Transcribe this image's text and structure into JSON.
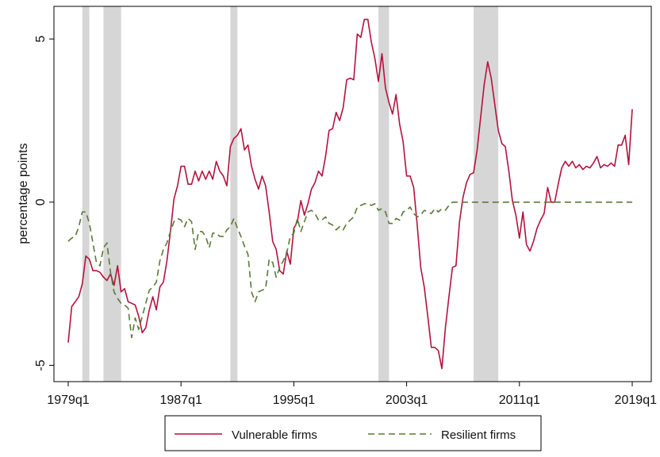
{
  "chart_data": {
    "type": "line",
    "xlabel": "",
    "ylabel": "percentage points",
    "xlim": [
      1979.0,
      2019.0
    ],
    "ylim": [
      -5.5,
      6.0
    ],
    "x_ticks": [
      {
        "value": 1979.0,
        "label": "1979q1"
      },
      {
        "value": 1987.0,
        "label": "1987q1"
      },
      {
        "value": 1995.0,
        "label": "1995q1"
      },
      {
        "value": 2003.0,
        "label": "2003q1"
      },
      {
        "value": 2011.0,
        "label": "2011q1"
      },
      {
        "value": 2019.0,
        "label": "2019q1"
      }
    ],
    "y_ticks": [
      {
        "value": -5,
        "label": "-5"
      },
      {
        "value": 0,
        "label": "0"
      },
      {
        "value": 5,
        "label": "5"
      }
    ],
    "grid": false,
    "legend_position": "bottom",
    "recession_shading": [
      [
        1980.0,
        1980.5
      ],
      [
        1981.5,
        1982.75
      ],
      [
        1990.5,
        1991.0
      ],
      [
        2001.0,
        2001.75
      ],
      [
        2007.75,
        2009.5
      ]
    ],
    "series": [
      {
        "name": "Vulnerable firms",
        "color": "#b5123d",
        "style": "solid",
        "points": [
          [
            1979.0,
            -4.3
          ],
          [
            1979.25,
            -3.2
          ],
          [
            1979.5,
            -3.05
          ],
          [
            1979.75,
            -2.9
          ],
          [
            1980.0,
            -2.5
          ],
          [
            1980.25,
            -1.65
          ],
          [
            1980.5,
            -1.75
          ],
          [
            1980.75,
            -2.1
          ],
          [
            1981.0,
            -2.1
          ],
          [
            1981.25,
            -2.15
          ],
          [
            1981.5,
            -2.3
          ],
          [
            1981.75,
            -2.4
          ],
          [
            1982.0,
            -2.2
          ],
          [
            1982.25,
            -2.55
          ],
          [
            1982.5,
            -1.95
          ],
          [
            1982.75,
            -2.75
          ],
          [
            1983.0,
            -2.65
          ],
          [
            1983.25,
            -3.05
          ],
          [
            1983.5,
            -3.1
          ],
          [
            1983.75,
            -3.15
          ],
          [
            1984.0,
            -3.5
          ],
          [
            1984.25,
            -4.0
          ],
          [
            1984.5,
            -3.85
          ],
          [
            1984.75,
            -3.3
          ],
          [
            1985.0,
            -2.9
          ],
          [
            1985.25,
            -3.3
          ],
          [
            1985.5,
            -2.6
          ],
          [
            1985.75,
            -2.45
          ],
          [
            1986.0,
            -1.8
          ],
          [
            1986.25,
            -0.9
          ],
          [
            1986.5,
            0.1
          ],
          [
            1986.75,
            0.5
          ],
          [
            1987.0,
            1.1
          ],
          [
            1987.25,
            1.1
          ],
          [
            1987.5,
            0.55
          ],
          [
            1987.75,
            0.55
          ],
          [
            1988.0,
            0.95
          ],
          [
            1988.25,
            0.65
          ],
          [
            1988.5,
            0.95
          ],
          [
            1988.75,
            0.7
          ],
          [
            1989.0,
            0.95
          ],
          [
            1989.25,
            0.7
          ],
          [
            1989.5,
            1.25
          ],
          [
            1989.75,
            0.95
          ],
          [
            1990.0,
            0.8
          ],
          [
            1990.25,
            0.5
          ],
          [
            1990.5,
            1.7
          ],
          [
            1990.75,
            1.95
          ],
          [
            1991.0,
            2.05
          ],
          [
            1991.25,
            2.25
          ],
          [
            1991.5,
            1.6
          ],
          [
            1991.75,
            1.75
          ],
          [
            1992.0,
            1.1
          ],
          [
            1992.25,
            0.7
          ],
          [
            1992.5,
            0.4
          ],
          [
            1992.75,
            0.8
          ],
          [
            1993.0,
            0.5
          ],
          [
            1993.25,
            -0.3
          ],
          [
            1993.5,
            -1.2
          ],
          [
            1993.75,
            -1.45
          ],
          [
            1994.0,
            -2.1
          ],
          [
            1994.25,
            -2.2
          ],
          [
            1994.5,
            -1.5
          ],
          [
            1994.75,
            -1.9
          ],
          [
            1995.0,
            -0.8
          ],
          [
            1995.25,
            -0.6
          ],
          [
            1995.5,
            0.05
          ],
          [
            1995.75,
            -0.4
          ],
          [
            1996.0,
            -0.05
          ],
          [
            1996.25,
            0.4
          ],
          [
            1996.5,
            0.6
          ],
          [
            1996.75,
            0.95
          ],
          [
            1997.0,
            0.8
          ],
          [
            1997.25,
            1.4
          ],
          [
            1997.5,
            2.2
          ],
          [
            1997.75,
            2.25
          ],
          [
            1998.0,
            2.75
          ],
          [
            1998.25,
            2.5
          ],
          [
            1998.5,
            2.9
          ],
          [
            1998.75,
            3.75
          ],
          [
            1999.0,
            3.8
          ],
          [
            1999.25,
            3.75
          ],
          [
            1999.5,
            5.15
          ],
          [
            1999.75,
            5.05
          ],
          [
            2000.0,
            5.6
          ],
          [
            2000.25,
            5.6
          ],
          [
            2000.5,
            4.9
          ],
          [
            2000.75,
            4.4
          ],
          [
            2001.0,
            3.7
          ],
          [
            2001.25,
            4.55
          ],
          [
            2001.5,
            3.5
          ],
          [
            2001.75,
            3.05
          ],
          [
            2002.0,
            2.7
          ],
          [
            2002.25,
            3.3
          ],
          [
            2002.5,
            2.4
          ],
          [
            2002.75,
            1.85
          ],
          [
            2003.0,
            0.8
          ],
          [
            2003.25,
            0.8
          ],
          [
            2003.5,
            0.45
          ],
          [
            2003.75,
            -0.7
          ],
          [
            2004.0,
            -2.0
          ],
          [
            2004.25,
            -2.6
          ],
          [
            2004.5,
            -3.5
          ],
          [
            2004.75,
            -4.45
          ],
          [
            2005.0,
            -4.45
          ],
          [
            2005.25,
            -4.55
          ],
          [
            2005.5,
            -5.1
          ],
          [
            2005.75,
            -3.85
          ],
          [
            2006.0,
            -2.9
          ],
          [
            2006.25,
            -2.0
          ],
          [
            2006.5,
            -1.95
          ],
          [
            2006.75,
            -0.6
          ],
          [
            2007.0,
            0.15
          ],
          [
            2007.25,
            0.6
          ],
          [
            2007.5,
            0.85
          ],
          [
            2007.75,
            0.9
          ],
          [
            2008.0,
            1.6
          ],
          [
            2008.25,
            2.6
          ],
          [
            2008.5,
            3.6
          ],
          [
            2008.75,
            4.3
          ],
          [
            2009.0,
            3.8
          ],
          [
            2009.25,
            3.0
          ],
          [
            2009.5,
            2.2
          ],
          [
            2009.75,
            1.8
          ],
          [
            2010.0,
            1.7
          ],
          [
            2010.25,
            0.95
          ],
          [
            2010.5,
            0.05
          ],
          [
            2010.75,
            -0.4
          ],
          [
            2011.0,
            -1.1
          ],
          [
            2011.25,
            -0.3
          ],
          [
            2011.5,
            -1.3
          ],
          [
            2011.75,
            -1.5
          ],
          [
            2012.0,
            -1.2
          ],
          [
            2012.25,
            -0.8
          ],
          [
            2012.5,
            -0.55
          ],
          [
            2012.75,
            -0.35
          ],
          [
            2013.0,
            0.45
          ],
          [
            2013.25,
            0.0
          ],
          [
            2013.5,
            0.0
          ],
          [
            2013.75,
            0.55
          ],
          [
            2014.0,
            1.05
          ],
          [
            2014.25,
            1.25
          ],
          [
            2014.5,
            1.1
          ],
          [
            2014.75,
            1.25
          ],
          [
            2015.0,
            1.05
          ],
          [
            2015.25,
            1.15
          ],
          [
            2015.5,
            1.0
          ],
          [
            2015.75,
            1.1
          ],
          [
            2016.0,
            1.05
          ],
          [
            2016.25,
            1.2
          ],
          [
            2016.5,
            1.4
          ],
          [
            2016.75,
            1.05
          ],
          [
            2017.0,
            1.15
          ],
          [
            2017.25,
            1.1
          ],
          [
            2017.5,
            1.2
          ],
          [
            2017.75,
            1.1
          ],
          [
            2018.0,
            1.75
          ],
          [
            2018.25,
            1.75
          ],
          [
            2018.5,
            2.05
          ],
          [
            2018.75,
            1.15
          ],
          [
            2019.0,
            2.85
          ]
        ]
      },
      {
        "name": "Resilient firms",
        "color": "#5a7a35",
        "style": "dashed",
        "points": [
          [
            1979.0,
            -1.2
          ],
          [
            1979.25,
            -1.1
          ],
          [
            1979.5,
            -1.05
          ],
          [
            1979.75,
            -0.75
          ],
          [
            1980.0,
            -0.3
          ],
          [
            1980.25,
            -0.3
          ],
          [
            1980.5,
            -0.65
          ],
          [
            1980.75,
            -1.25
          ],
          [
            1981.0,
            -1.85
          ],
          [
            1981.25,
            -1.95
          ],
          [
            1981.5,
            -1.4
          ],
          [
            1981.75,
            -1.25
          ],
          [
            1982.0,
            -2.15
          ],
          [
            1982.25,
            -2.75
          ],
          [
            1982.5,
            -2.95
          ],
          [
            1982.75,
            -3.1
          ],
          [
            1983.0,
            -3.15
          ],
          [
            1983.25,
            -3.25
          ],
          [
            1983.5,
            -4.15
          ],
          [
            1983.75,
            -3.55
          ],
          [
            1984.0,
            -3.9
          ],
          [
            1984.25,
            -3.5
          ],
          [
            1984.5,
            -3.1
          ],
          [
            1984.75,
            -2.7
          ],
          [
            1985.0,
            -2.6
          ],
          [
            1985.25,
            -2.45
          ],
          [
            1985.5,
            -1.8
          ],
          [
            1985.75,
            -1.45
          ],
          [
            1986.0,
            -1.25
          ],
          [
            1986.25,
            -0.9
          ],
          [
            1986.5,
            -0.6
          ],
          [
            1986.75,
            -0.5
          ],
          [
            1987.0,
            -0.55
          ],
          [
            1987.25,
            -0.75
          ],
          [
            1987.5,
            -0.5
          ],
          [
            1987.75,
            -0.6
          ],
          [
            1988.0,
            -1.45
          ],
          [
            1988.25,
            -0.9
          ],
          [
            1988.5,
            -0.9
          ],
          [
            1988.75,
            -1.05
          ],
          [
            1989.0,
            -1.4
          ],
          [
            1989.25,
            -0.95
          ],
          [
            1989.5,
            -0.95
          ],
          [
            1989.75,
            -1.05
          ],
          [
            1990.0,
            -1.05
          ],
          [
            1990.25,
            -0.85
          ],
          [
            1990.5,
            -0.75
          ],
          [
            1990.75,
            -0.5
          ],
          [
            1991.0,
            -0.8
          ],
          [
            1991.25,
            -1.05
          ],
          [
            1991.5,
            -1.35
          ],
          [
            1991.75,
            -1.6
          ],
          [
            1992.0,
            -2.75
          ],
          [
            1992.25,
            -3.05
          ],
          [
            1992.5,
            -2.75
          ],
          [
            1992.75,
            -2.7
          ],
          [
            1993.0,
            -2.65
          ],
          [
            1993.25,
            -1.75
          ],
          [
            1993.5,
            -1.85
          ],
          [
            1993.75,
            -2.3
          ],
          [
            1994.0,
            -2.0
          ],
          [
            1994.25,
            -1.8
          ],
          [
            1994.5,
            -1.55
          ],
          [
            1994.75,
            -1.05
          ],
          [
            1995.0,
            -0.95
          ],
          [
            1995.25,
            -0.5
          ],
          [
            1995.5,
            -0.9
          ],
          [
            1995.75,
            -0.6
          ],
          [
            1996.0,
            -0.3
          ],
          [
            1996.25,
            -0.25
          ],
          [
            1996.5,
            -0.35
          ],
          [
            1996.75,
            -0.55
          ],
          [
            1997.0,
            -0.55
          ],
          [
            1997.25,
            -0.45
          ],
          [
            1997.5,
            -0.65
          ],
          [
            1997.75,
            -0.7
          ],
          [
            1998.0,
            -0.85
          ],
          [
            1998.25,
            -0.75
          ],
          [
            1998.5,
            -0.85
          ],
          [
            1998.75,
            -0.65
          ],
          [
            1999.0,
            -0.55
          ],
          [
            1999.25,
            -0.45
          ],
          [
            1999.5,
            -0.15
          ],
          [
            1999.75,
            -0.1
          ],
          [
            2000.0,
            -0.05
          ],
          [
            2000.25,
            -0.05
          ],
          [
            2000.5,
            -0.1
          ],
          [
            2000.75,
            -0.05
          ],
          [
            2001.0,
            -0.25
          ],
          [
            2001.25,
            -0.2
          ],
          [
            2001.5,
            -0.3
          ],
          [
            2001.75,
            -0.65
          ],
          [
            2002.0,
            -0.65
          ],
          [
            2002.25,
            -0.5
          ],
          [
            2002.5,
            -0.55
          ],
          [
            2002.75,
            -0.3
          ],
          [
            2003.0,
            -0.25
          ],
          [
            2003.25,
            -0.15
          ],
          [
            2003.5,
            -0.35
          ],
          [
            2003.75,
            -0.45
          ],
          [
            2004.0,
            -0.4
          ],
          [
            2004.25,
            -0.25
          ],
          [
            2004.5,
            -0.3
          ],
          [
            2004.75,
            -0.35
          ],
          [
            2005.0,
            -0.2
          ],
          [
            2005.25,
            -0.3
          ],
          [
            2005.5,
            -0.2
          ],
          [
            2005.75,
            -0.25
          ],
          [
            2006.0,
            -0.1
          ],
          [
            2006.25,
            0.0
          ],
          [
            2019.0,
            0.0
          ]
        ]
      }
    ]
  }
}
